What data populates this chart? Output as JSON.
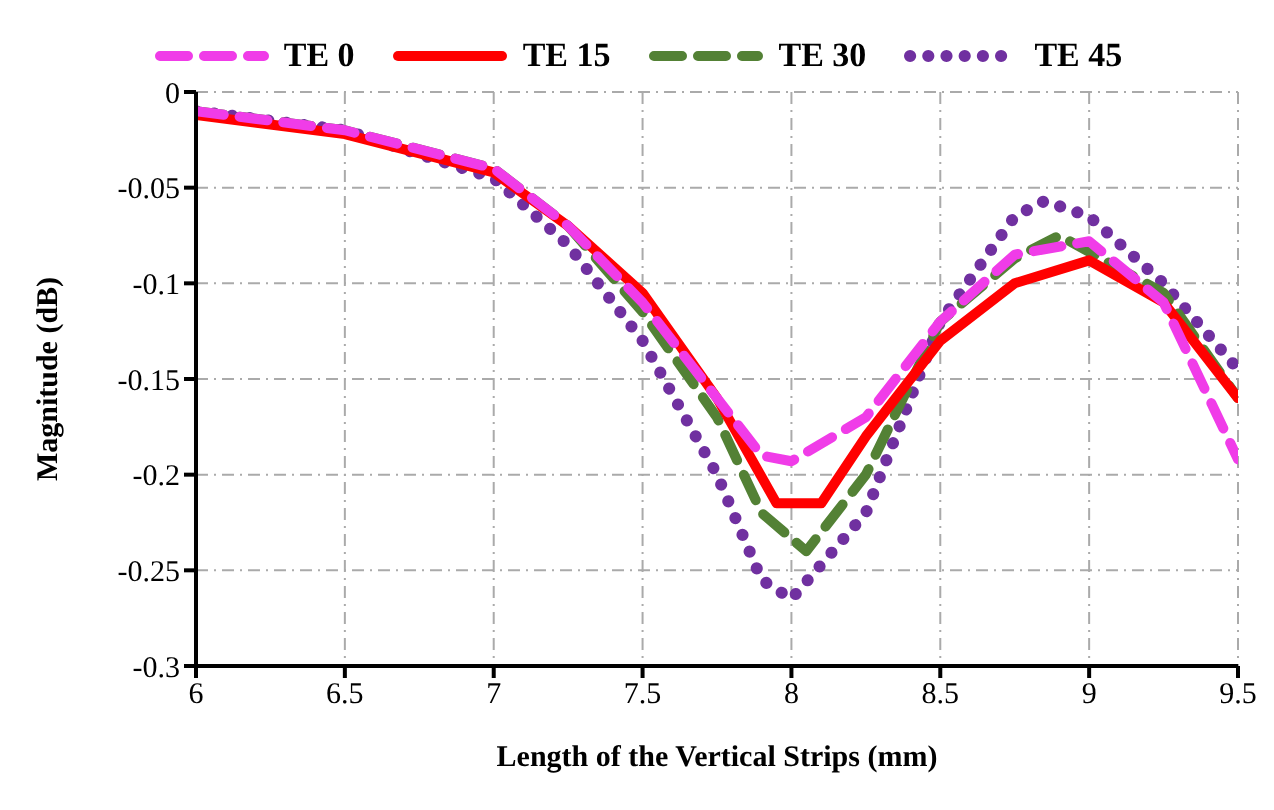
{
  "chart_data": {
    "type": "line",
    "xlabel": "Length of  the Vertical Strips (mm)",
    "ylabel": "Magnitude (dB)",
    "xlim": [
      6,
      9.5
    ],
    "xticks": [
      6,
      6.5,
      7,
      7.5,
      8,
      8.5,
      9,
      9.5
    ],
    "ylim": [
      -0.3,
      0
    ],
    "yticks": [
      -0.3,
      -0.25,
      -0.2,
      -0.15,
      -0.1,
      -0.05,
      0
    ],
    "grid": true,
    "legend": "top",
    "marker": "none",
    "series": [
      {
        "name": "TE 0",
        "color": "#f03ce8",
        "line_style": "dashed",
        "x": [
          6,
          6.5,
          7,
          7.25,
          7.5,
          7.75,
          7.9,
          8,
          8.25,
          8.5,
          8.75,
          9,
          9.25,
          9.5
        ],
        "values": [
          -0.01,
          -0.02,
          -0.04,
          -0.07,
          -0.11,
          -0.16,
          -0.19,
          -0.193,
          -0.17,
          -0.12,
          -0.085,
          -0.078,
          -0.11,
          -0.192
        ]
      },
      {
        "name": "TE 15",
        "color": "#ff0000",
        "line_style": "solid",
        "x": [
          6,
          6.5,
          7,
          7.25,
          7.5,
          7.75,
          7.95,
          8.1,
          8.25,
          8.5,
          8.75,
          9,
          9.25,
          9.5
        ],
        "values": [
          -0.012,
          -0.022,
          -0.042,
          -0.07,
          -0.105,
          -0.16,
          -0.215,
          -0.215,
          -0.18,
          -0.13,
          -0.1,
          -0.088,
          -0.11,
          -0.16
        ]
      },
      {
        "name": "TE 30",
        "color": "#538135",
        "line_style": "dashed",
        "x": [
          6,
          6.5,
          7,
          7.25,
          7.5,
          7.75,
          7.9,
          8.05,
          8.25,
          8.5,
          8.75,
          8.9,
          9.25,
          9.5
        ],
        "values": [
          -0.01,
          -0.02,
          -0.04,
          -0.07,
          -0.115,
          -0.17,
          -0.22,
          -0.24,
          -0.2,
          -0.12,
          -0.087,
          -0.075,
          -0.105,
          -0.16
        ]
      },
      {
        "name": "TE 45",
        "color": "#7030a0",
        "line_style": "dotted",
        "x": [
          6,
          6.5,
          7,
          7.25,
          7.5,
          7.75,
          7.9,
          8,
          8.25,
          8.5,
          8.75,
          8.85,
          9,
          9.25,
          9.5
        ],
        "values": [
          -0.01,
          -0.02,
          -0.045,
          -0.08,
          -0.13,
          -0.2,
          -0.255,
          -0.265,
          -0.22,
          -0.12,
          -0.065,
          -0.057,
          -0.065,
          -0.1,
          -0.145
        ]
      }
    ]
  }
}
